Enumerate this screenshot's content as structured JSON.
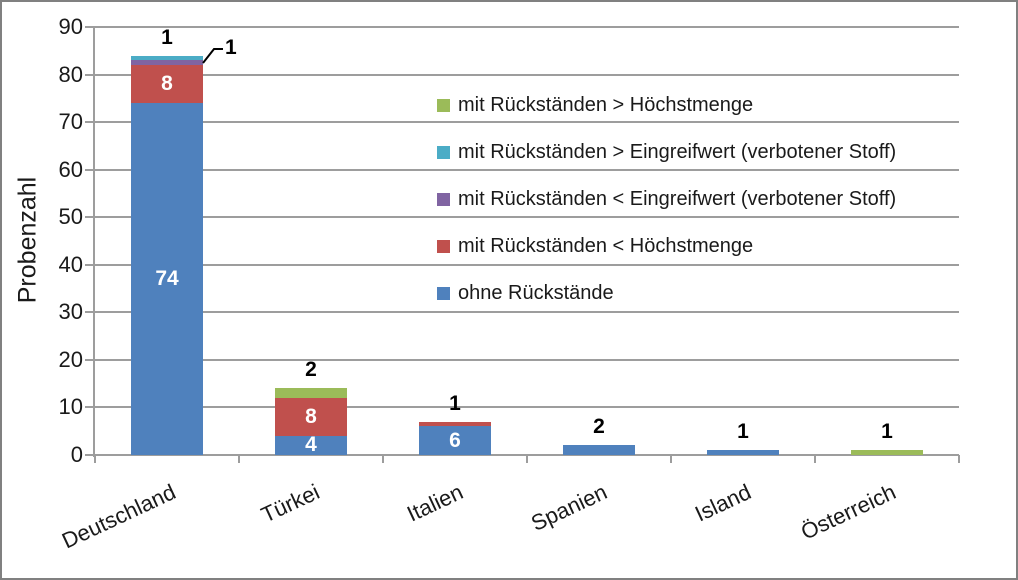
{
  "chart_data": {
    "type": "bar",
    "stacked": true,
    "title": "",
    "ylabel": "Probenzahl",
    "xlabel": "",
    "ylim": [
      0,
      90
    ],
    "ytick_step": 10,
    "grid": "horizontal",
    "legend_position": "inside-right",
    "legend_order": "series-reversed",
    "categories": [
      "Deutschland",
      "Türkei",
      "Italien",
      "Spanien",
      "Island",
      "Österreich"
    ],
    "series": [
      {
        "name": "ohne Rückstände",
        "color": "#4F81BD",
        "values": [
          74,
          4,
          6,
          2,
          1,
          0
        ]
      },
      {
        "name": "mit Rückständen < Höchstmenge",
        "color": "#C0504D",
        "values": [
          8,
          8,
          1,
          0,
          0,
          0
        ]
      },
      {
        "name": "mit Rückständen < Eingreifwert (verbotener Stoff)",
        "color": "#8064A2",
        "values": [
          1,
          0,
          0,
          0,
          0,
          0
        ]
      },
      {
        "name": "mit Rückständen > Eingreifwert (verbotener Stoff)",
        "color": "#4BACC6",
        "values": [
          1,
          0,
          0,
          0,
          0,
          0
        ]
      },
      {
        "name": "mit Rückständen > Höchstmenge",
        "color": "#9BBB59",
        "values": [
          0,
          2,
          0,
          0,
          0,
          1
        ]
      }
    ],
    "data_labels": {
      "inside_color": "#ffffff",
      "outside_color": "#000000",
      "callout": {
        "category": "Deutschland",
        "series": "mit Rückständen < Eingreifwert (verbotener Stoff)",
        "value": 1
      }
    }
  },
  "colors": {
    "grid": "#9d9d9d",
    "axis": "#9d9d9d",
    "axis_text": "#1a1a1a",
    "frame_border": "#808080",
    "background": "#ffffff"
  }
}
